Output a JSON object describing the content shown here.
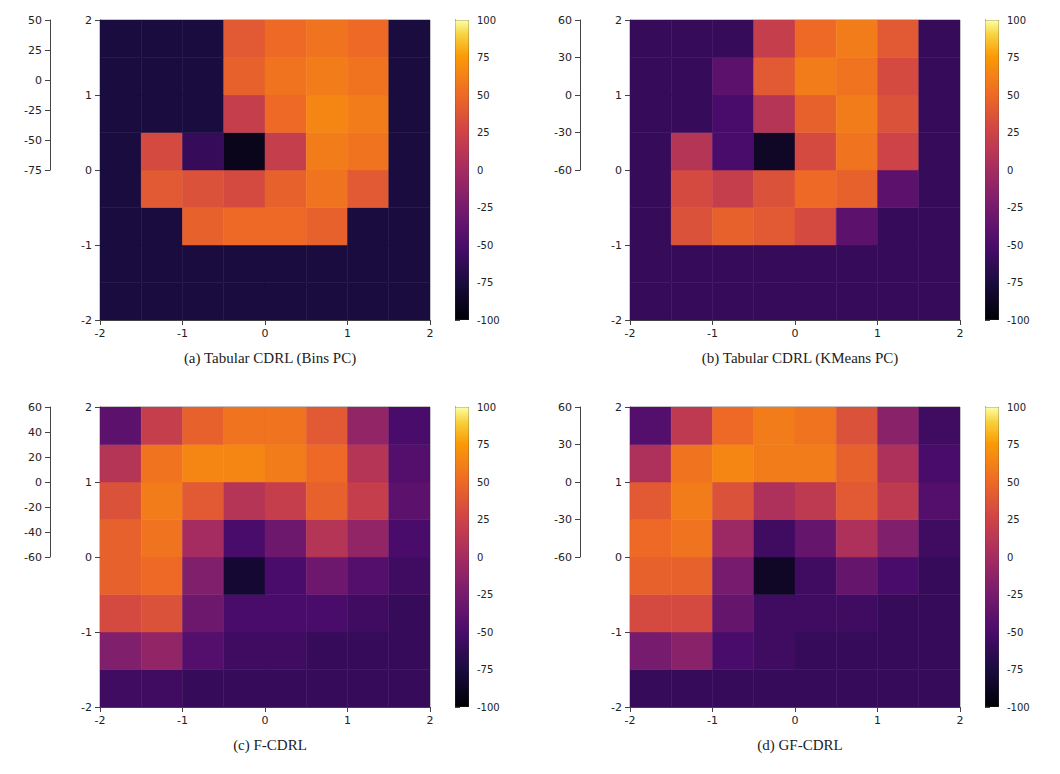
{
  "chart_data": [
    {
      "type": "surface",
      "title": "(a) Tabular CDRL (Bins PC)",
      "xlim": [
        -2,
        2
      ],
      "xticks": [
        -2,
        -1,
        0,
        1,
        2
      ],
      "ylim": [
        -2,
        2
      ],
      "yticks": [
        -2,
        -1,
        0,
        1,
        2
      ],
      "zlim": [
        -75,
        50
      ],
      "zticks": [
        -75,
        -50,
        -25,
        0,
        25,
        50
      ],
      "x_bins": [
        -2,
        -1.5,
        -1,
        -0.5,
        0,
        0.5,
        1,
        1.5,
        2
      ],
      "y_bins": [
        -2,
        -1.5,
        -1,
        -0.5,
        0,
        0.5,
        1,
        1.5,
        2
      ],
      "z": [
        [
          -75,
          -75,
          -75,
          -75,
          -75,
          -75,
          -75,
          -75
        ],
        [
          -75,
          -75,
          -75,
          -75,
          -75,
          -75,
          -75,
          -75
        ],
        [
          -75,
          -75,
          45,
          50,
          50,
          45,
          -75,
          -75
        ],
        [
          -75,
          40,
          35,
          30,
          45,
          55,
          40,
          -75
        ],
        [
          -75,
          30,
          -60,
          -90,
          20,
          60,
          55,
          -75
        ],
        [
          -75,
          -75,
          -75,
          20,
          50,
          65,
          60,
          -75
        ],
        [
          -75,
          -75,
          -75,
          45,
          55,
          60,
          55,
          -75
        ],
        [
          -75,
          -75,
          -75,
          40,
          50,
          55,
          50,
          -75
        ]
      ],
      "colorbar": {
        "range": [
          -100,
          100
        ],
        "ticks": [
          -100,
          -75,
          -50,
          -25,
          0,
          25,
          50,
          75,
          100
        ]
      }
    },
    {
      "type": "surface",
      "title": "(b) Tabular CDRL (KMeans PC)",
      "xlim": [
        -2,
        2
      ],
      "xticks": [
        -2,
        -1,
        0,
        1,
        2
      ],
      "ylim": [
        -2,
        2
      ],
      "yticks": [
        -2,
        -1,
        0,
        1,
        2
      ],
      "zlim": [
        -60,
        60
      ],
      "zticks": [
        -60,
        -30,
        0,
        30,
        60
      ],
      "x_bins": [
        -2,
        -1.5,
        -1,
        -0.5,
        0,
        0.5,
        1,
        1.5,
        2
      ],
      "y_bins": [
        -2,
        -1.5,
        -1,
        -0.5,
        0,
        0.5,
        1,
        1.5,
        2
      ],
      "z": [
        [
          -60,
          -60,
          -60,
          -60,
          -60,
          -60,
          -60,
          -60
        ],
        [
          -60,
          -60,
          -60,
          -60,
          -60,
          -60,
          -60,
          -60
        ],
        [
          -60,
          35,
          45,
          40,
          30,
          -40,
          -60,
          -60
        ],
        [
          -60,
          30,
          20,
          35,
          50,
          45,
          -40,
          -60
        ],
        [
          -60,
          10,
          -50,
          -85,
          30,
          55,
          25,
          -60
        ],
        [
          -60,
          -60,
          -50,
          10,
          45,
          60,
          35,
          -60
        ],
        [
          -60,
          -60,
          -40,
          40,
          60,
          55,
          30,
          -60
        ],
        [
          -60,
          -60,
          -60,
          20,
          50,
          60,
          40,
          -60
        ]
      ],
      "colorbar": {
        "range": [
          -100,
          100
        ],
        "ticks": [
          -100,
          -75,
          -50,
          -25,
          0,
          25,
          50,
          75,
          100
        ]
      }
    },
    {
      "type": "surface",
      "title": "(c) F-CDRL",
      "xlim": [
        -2,
        2
      ],
      "xticks": [
        -2,
        -1,
        0,
        1,
        2
      ],
      "ylim": [
        -2,
        2
      ],
      "yticks": [
        -2,
        -1,
        0,
        1,
        2
      ],
      "zlim": [
        -60,
        60
      ],
      "zticks": [
        -60,
        -40,
        -20,
        0,
        20,
        40,
        60
      ],
      "x_bins": [
        -2,
        -1.5,
        -1,
        -0.5,
        0,
        0.5,
        1,
        1.5,
        2
      ],
      "y_bins": [
        -2,
        -1.5,
        -1,
        -0.5,
        0,
        0.5,
        1,
        1.5,
        2
      ],
      "z": [
        [
          -55,
          -55,
          -60,
          -60,
          -60,
          -60,
          -60,
          -60
        ],
        [
          -20,
          -10,
          -45,
          -55,
          -55,
          -60,
          -60,
          -60
        ],
        [
          30,
          35,
          -30,
          -50,
          -50,
          -50,
          -55,
          -60
        ],
        [
          45,
          50,
          -20,
          -80,
          -50,
          -30,
          -45,
          -55
        ],
        [
          45,
          55,
          0,
          -50,
          -30,
          10,
          -10,
          -50
        ],
        [
          35,
          60,
          40,
          10,
          20,
          45,
          20,
          -40
        ],
        [
          10,
          55,
          65,
          65,
          60,
          50,
          10,
          -45
        ],
        [
          -40,
          20,
          45,
          55,
          55,
          40,
          -10,
          -50
        ]
      ],
      "colorbar": {
        "range": [
          -100,
          100
        ],
        "ticks": [
          -100,
          -75,
          -50,
          -25,
          0,
          25,
          50,
          75,
          100
        ]
      }
    },
    {
      "type": "surface",
      "title": "(d) GF-CDRL",
      "xlim": [
        -2,
        2
      ],
      "xticks": [
        -2,
        -1,
        0,
        1,
        2
      ],
      "ylim": [
        -2,
        2
      ],
      "yticks": [
        -2,
        -1,
        0,
        1,
        2
      ],
      "zlim": [
        -60,
        60
      ],
      "zticks": [
        -60,
        -30,
        0,
        30,
        60
      ],
      "x_bins": [
        -2,
        -1.5,
        -1,
        -0.5,
        0,
        0.5,
        1,
        1.5,
        2
      ],
      "y_bins": [
        -2,
        -1.5,
        -1,
        -0.5,
        0,
        0.5,
        1,
        1.5,
        2
      ],
      "z": [
        [
          -60,
          -60,
          -60,
          -60,
          -60,
          -60,
          -60,
          -60
        ],
        [
          -25,
          -15,
          -50,
          -55,
          -60,
          -60,
          -60,
          -60
        ],
        [
          30,
          30,
          -35,
          -55,
          -55,
          -55,
          -60,
          -60
        ],
        [
          45,
          45,
          -25,
          -85,
          -55,
          -35,
          -50,
          -60
        ],
        [
          50,
          55,
          -5,
          -55,
          -35,
          5,
          -20,
          -55
        ],
        [
          40,
          60,
          35,
          5,
          15,
          40,
          15,
          -45
        ],
        [
          5,
          55,
          65,
          60,
          60,
          45,
          5,
          -50
        ],
        [
          -45,
          15,
          50,
          60,
          55,
          35,
          -15,
          -55
        ]
      ],
      "colorbar": {
        "range": [
          -100,
          100
        ],
        "ticks": [
          -100,
          -75,
          -50,
          -25,
          0,
          25,
          50,
          75,
          100
        ]
      }
    }
  ]
}
